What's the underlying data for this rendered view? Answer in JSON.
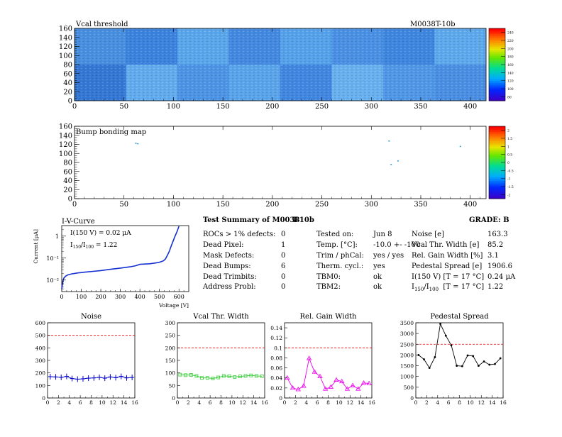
{
  "vcal_map": {
    "title": "Vcal threshold",
    "module_label": "M0038T-10b",
    "x_ticks": [
      "0",
      "50",
      "100",
      "150",
      "200",
      "250",
      "300",
      "350",
      "400"
    ],
    "y_ticks": [
      "0",
      "20",
      "40",
      "60",
      "80",
      "100",
      "120",
      "140",
      "160"
    ],
    "xlim": [
      0,
      416
    ],
    "ylim": [
      0,
      160
    ],
    "colorbar_ticks": [
      "80",
      "100",
      "120",
      "140",
      "160",
      "180",
      "200",
      "220",
      "240"
    ]
  },
  "bump_map": {
    "title": "Bump bonding map",
    "x_ticks": [
      "0",
      "50",
      "100",
      "150",
      "200",
      "250",
      "300",
      "350",
      "400"
    ],
    "y_ticks": [
      "0",
      "20",
      "40",
      "60",
      "80",
      "100",
      "120",
      "140",
      "160"
    ],
    "xlim": [
      0,
      416
    ],
    "ylim": [
      0,
      160
    ],
    "colorbar_ticks": [
      "-2",
      "-1.5",
      "-1",
      "-0.5",
      "0",
      "0.5",
      "1",
      "1.5",
      "2"
    ]
  },
  "iv_curve": {
    "title": "I-V-Curve",
    "xlabel": "Voltage [V]",
    "ylabel": "Current [µA]",
    "x_ticks": [
      "0",
      "100",
      "200",
      "300",
      "400",
      "500",
      "600"
    ],
    "y_ticks": [
      "10⁻²",
      "10⁻¹",
      "1"
    ],
    "annot_current": "I(150 V) = 0.02 µA",
    "annot_ratio_main": "I",
    "annot_ratio_sub1": "150",
    "annot_ratio_mid": "/I",
    "annot_ratio_sub2": "100",
    "annot_ratio_val": " = 1.22"
  },
  "summary": {
    "title": "Test Summary of M0038",
    "module": "T-10b",
    "grade": "GRADE:  B",
    "defects": [
      {
        "label": "ROCs > 1% defects:",
        "value": "0"
      },
      {
        "label": "Dead Pixel:",
        "value": "1"
      },
      {
        "label": "Mask Defects:",
        "value": "0"
      },
      {
        "label": "Dead Bumps:",
        "value": "6"
      },
      {
        "label": "Dead Trimbits:",
        "value": "0"
      },
      {
        "label": "Address Probl:",
        "value": "0"
      }
    ],
    "conditions": [
      {
        "label": "Tested on:",
        "value": "Jun 8"
      },
      {
        "label": "Temp. [°C]:",
        "value": "-10.0 +- -100"
      },
      {
        "label": "Trim / phCal:",
        "value": "yes / yes"
      },
      {
        "label": "Therm. cycl.:",
        "value": "yes"
      },
      {
        "label": "TBM0:",
        "value": "ok"
      },
      {
        "label": "TBM2:",
        "value": "ok"
      }
    ],
    "results": [
      {
        "label": "Noise [e]",
        "value": "163.3"
      },
      {
        "label": "Vcal Thr. Width [e]",
        "value": "85.2"
      },
      {
        "label": "Rel. Gain Width [%]",
        "value": "3.1"
      },
      {
        "label": "Pedestal Spread [e]",
        "value": "1906.6"
      },
      {
        "label": "I(150 V) [T = 17 °C]",
        "value": "0.24 µA"
      },
      {
        "label": "I150/I100  [T = 17 °C]",
        "value": "1.22"
      }
    ]
  },
  "chart_data": [
    {
      "type": "heatmap",
      "title": "Vcal threshold",
      "xlim": [
        0,
        416
      ],
      "ylim": [
        0,
        160
      ],
      "zlim": [
        80,
        250
      ],
      "note_blocks": "16 ROC blocks 52x80; bottom row lighter than top"
    },
    {
      "type": "heatmap",
      "title": "Bump bonding map",
      "xlim": [
        0,
        416
      ],
      "ylim": [
        0,
        160
      ],
      "zlim": [
        -2,
        2
      ],
      "points": [
        [
          62,
          122
        ],
        [
          64,
          121
        ],
        [
          318,
          127
        ],
        [
          327,
          83
        ],
        [
          320,
          75
        ],
        [
          390,
          115
        ]
      ]
    },
    {
      "type": "line",
      "title": "I-V-Curve",
      "xlabel": "Voltage [V]",
      "ylabel": "Current [µA]",
      "yscale": "log",
      "xlim": [
        0,
        650
      ],
      "ylim": [
        0.003,
        3
      ],
      "x": [
        0,
        5,
        10,
        20,
        30,
        50,
        80,
        120,
        160,
        200,
        250,
        300,
        350,
        380,
        400,
        450,
        480,
        500,
        520,
        530,
        540,
        550,
        560,
        570,
        580,
        590,
        600
      ],
      "y": [
        0.004,
        0.008,
        0.012,
        0.015,
        0.017,
        0.019,
        0.021,
        0.023,
        0.025,
        0.027,
        0.031,
        0.035,
        0.04,
        0.045,
        0.052,
        0.055,
        0.06,
        0.065,
        0.075,
        0.09,
        0.13,
        0.2,
        0.35,
        0.6,
        1.0,
        1.6,
        2.8
      ]
    },
    {
      "type": "line",
      "title": "Noise",
      "xlim": [
        0,
        16
      ],
      "ylim": [
        0,
        600
      ],
      "x_ticks": [
        "0",
        "2",
        "4",
        "6",
        "8",
        "10",
        "12",
        "14",
        "16"
      ],
      "y_ticks": [
        "0",
        "100",
        "200",
        "300",
        "400",
        "500",
        "600"
      ],
      "threshold": 500,
      "color": "#0000cc",
      "x": [
        0.5,
        1.5,
        2.5,
        3.5,
        4.5,
        5.5,
        6.5,
        7.5,
        8.5,
        9.5,
        10.5,
        11.5,
        12.5,
        13.5,
        14.5,
        15.5
      ],
      "values": [
        170,
        168,
        165,
        172,
        155,
        150,
        153,
        158,
        160,
        165,
        158,
        168,
        162,
        172,
        160,
        164
      ]
    },
    {
      "type": "line",
      "title": "Vcal Thr. Width",
      "xlim": [
        0,
        16
      ],
      "ylim": [
        0,
        300
      ],
      "x_ticks": [
        "0",
        "2",
        "4",
        "6",
        "8",
        "10",
        "12",
        "14",
        "16"
      ],
      "y_ticks": [
        "0",
        "50",
        "100",
        "150",
        "200",
        "250",
        "300"
      ],
      "threshold": 200,
      "color": "#33cc33",
      "x": [
        0.5,
        1.5,
        2.5,
        3.5,
        4.5,
        5.5,
        6.5,
        7.5,
        8.5,
        9.5,
        10.5,
        11.5,
        12.5,
        13.5,
        14.5,
        15.5
      ],
      "values": [
        93,
        91,
        92,
        88,
        80,
        80,
        78,
        82,
        88,
        87,
        84,
        86,
        88,
        90,
        88,
        87
      ]
    },
    {
      "type": "line",
      "title": "Rel. Gain Width",
      "xlim": [
        0,
        16
      ],
      "ylim": [
        0,
        0.15
      ],
      "x_ticks": [
        "0",
        "2",
        "4",
        "6",
        "8",
        "10",
        "12",
        "14",
        "16"
      ],
      "y_ticks": [
        "0",
        "0.02",
        "0.04",
        "0.06",
        "0.08",
        "0.1",
        "0.12",
        "0.14"
      ],
      "threshold": 0.1,
      "color": "#ee00ee",
      "x": [
        0.5,
        1.5,
        2.5,
        3.5,
        4.5,
        5.5,
        6.5,
        7.5,
        8.5,
        9.5,
        10.5,
        11.5,
        12.5,
        13.5,
        14.5,
        15.5
      ],
      "values": [
        0.04,
        0.02,
        0.017,
        0.024,
        0.079,
        0.052,
        0.043,
        0.018,
        0.022,
        0.036,
        0.033,
        0.018,
        0.025,
        0.018,
        0.03,
        0.029
      ]
    },
    {
      "type": "line",
      "title": "Pedestal Spread",
      "xlim": [
        0,
        16
      ],
      "ylim": [
        0,
        3500
      ],
      "x_ticks": [
        "0",
        "2",
        "4",
        "6",
        "8",
        "10",
        "12",
        "14",
        "16"
      ],
      "y_ticks": [
        "0",
        "500",
        "1000",
        "1500",
        "2000",
        "2500",
        "3000",
        "3500"
      ],
      "threshold": 2500,
      "color": "#000000",
      "x": [
        0.5,
        1.5,
        2.5,
        3.5,
        4.5,
        5.5,
        6.5,
        7.5,
        8.5,
        9.5,
        10.5,
        11.5,
        12.5,
        13.5,
        14.5,
        15.5
      ],
      "values": [
        2000,
        1800,
        1400,
        1900,
        3450,
        2900,
        2450,
        1500,
        1480,
        1980,
        1950,
        1500,
        1700,
        1550,
        1580,
        1850
      ]
    }
  ]
}
